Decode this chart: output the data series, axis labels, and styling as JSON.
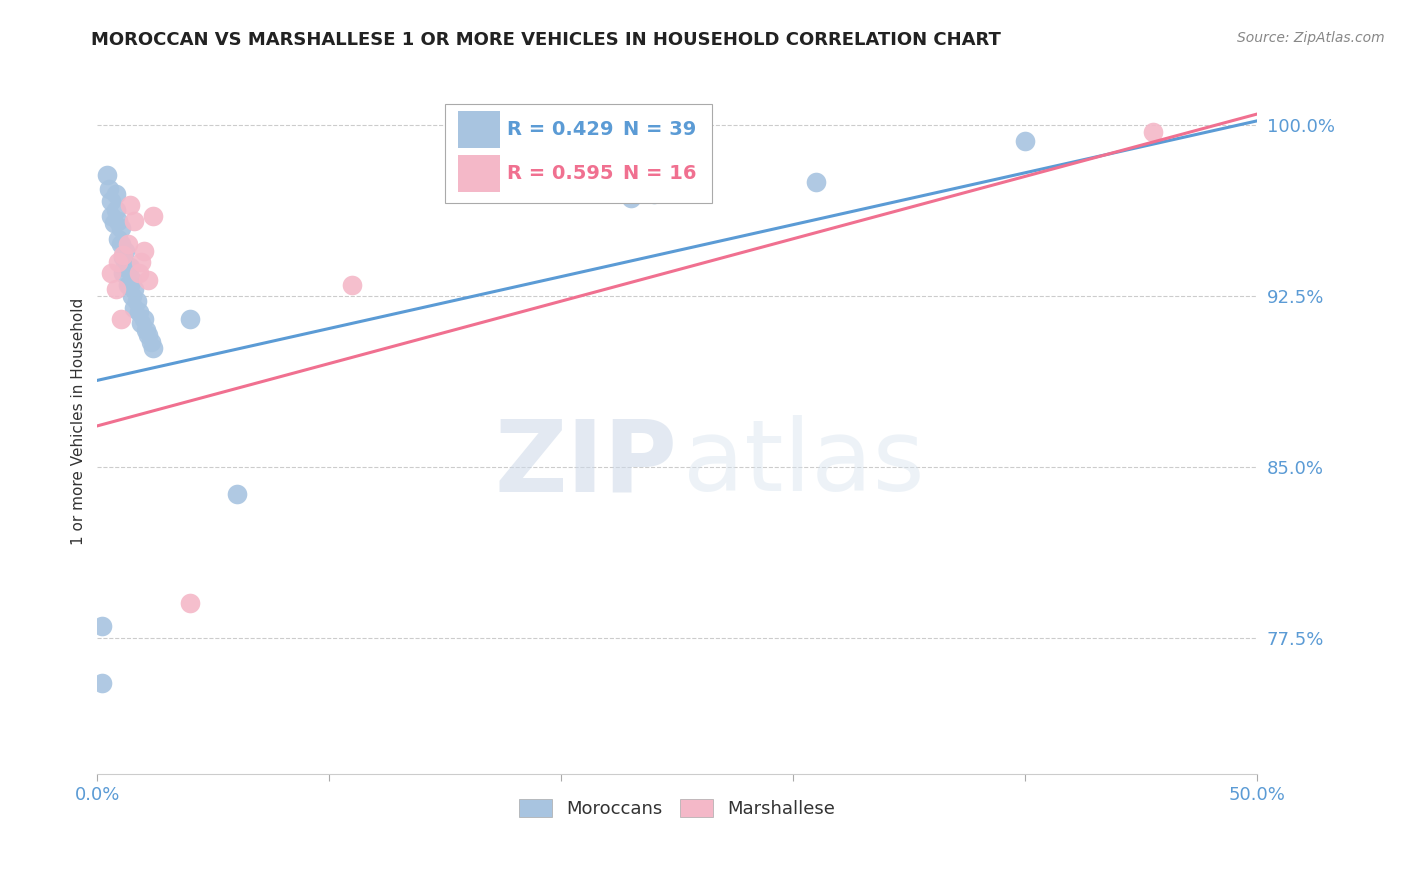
{
  "title": "MOROCCAN VS MARSHALLESE 1 OR MORE VEHICLES IN HOUSEHOLD CORRELATION CHART",
  "source": "Source: ZipAtlas.com",
  "ylabel": "1 or more Vehicles in Household",
  "moroccan_color": "#a8c4e0",
  "marshallese_color": "#f4b8c8",
  "moroccan_line_color": "#5b9bd5",
  "marshallese_line_color": "#f07090",
  "legend_r_moroccan": "R = 0.429",
  "legend_n_moroccan": "N = 39",
  "legend_r_marshallese": "R = 0.595",
  "legend_n_marshallese": "N = 16",
  "moroccan_x": [
    0.002,
    0.004,
    0.005,
    0.006,
    0.006,
    0.007,
    0.008,
    0.008,
    0.009,
    0.009,
    0.01,
    0.01,
    0.011,
    0.011,
    0.012,
    0.012,
    0.013,
    0.013,
    0.014,
    0.014,
    0.015,
    0.015,
    0.016,
    0.016,
    0.017,
    0.018,
    0.019,
    0.02,
    0.021,
    0.022,
    0.023,
    0.024,
    0.04,
    0.002,
    0.06,
    0.23,
    0.24,
    0.31,
    0.4
  ],
  "moroccan_y": [
    0.755,
    0.978,
    0.972,
    0.967,
    0.96,
    0.957,
    0.963,
    0.97,
    0.95,
    0.958,
    0.948,
    0.955,
    0.935,
    0.942,
    0.938,
    0.945,
    0.93,
    0.937,
    0.93,
    0.938,
    0.925,
    0.932,
    0.92,
    0.928,
    0.923,
    0.918,
    0.913,
    0.915,
    0.91,
    0.908,
    0.905,
    0.902,
    0.915,
    0.78,
    0.838,
    0.968,
    0.97,
    0.975,
    0.993
  ],
  "marshallese_x": [
    0.006,
    0.008,
    0.009,
    0.01,
    0.011,
    0.013,
    0.014,
    0.016,
    0.018,
    0.019,
    0.02,
    0.022,
    0.024,
    0.04,
    0.11,
    0.455
  ],
  "marshallese_y": [
    0.935,
    0.928,
    0.94,
    0.915,
    0.943,
    0.948,
    0.965,
    0.958,
    0.935,
    0.94,
    0.945,
    0.932,
    0.96,
    0.79,
    0.93,
    0.997
  ],
  "moroccan_trendline_x": [
    0.0,
    0.5
  ],
  "moroccan_trendline_y": [
    0.888,
    1.002
  ],
  "marshallese_trendline_x": [
    0.0,
    0.5
  ],
  "marshallese_trendline_y": [
    0.868,
    1.005
  ],
  "xlim": [
    0.0,
    0.5
  ],
  "ylim": [
    0.715,
    1.025
  ],
  "xticks": [
    0.0,
    0.1,
    0.2,
    0.3,
    0.4,
    0.5
  ],
  "xticklabels": [
    "0.0%",
    "",
    "",
    "",
    "",
    "50.0%"
  ],
  "yticks": [
    0.775,
    0.85,
    0.925,
    1.0
  ],
  "yticklabels": [
    "77.5%",
    "85.0%",
    "92.5%",
    "100.0%"
  ],
  "tick_color": "#5b9bd5",
  "grid_color": "#cccccc",
  "watermark_zip": "ZIP",
  "watermark_atlas": "atlas",
  "background_color": "#ffffff"
}
